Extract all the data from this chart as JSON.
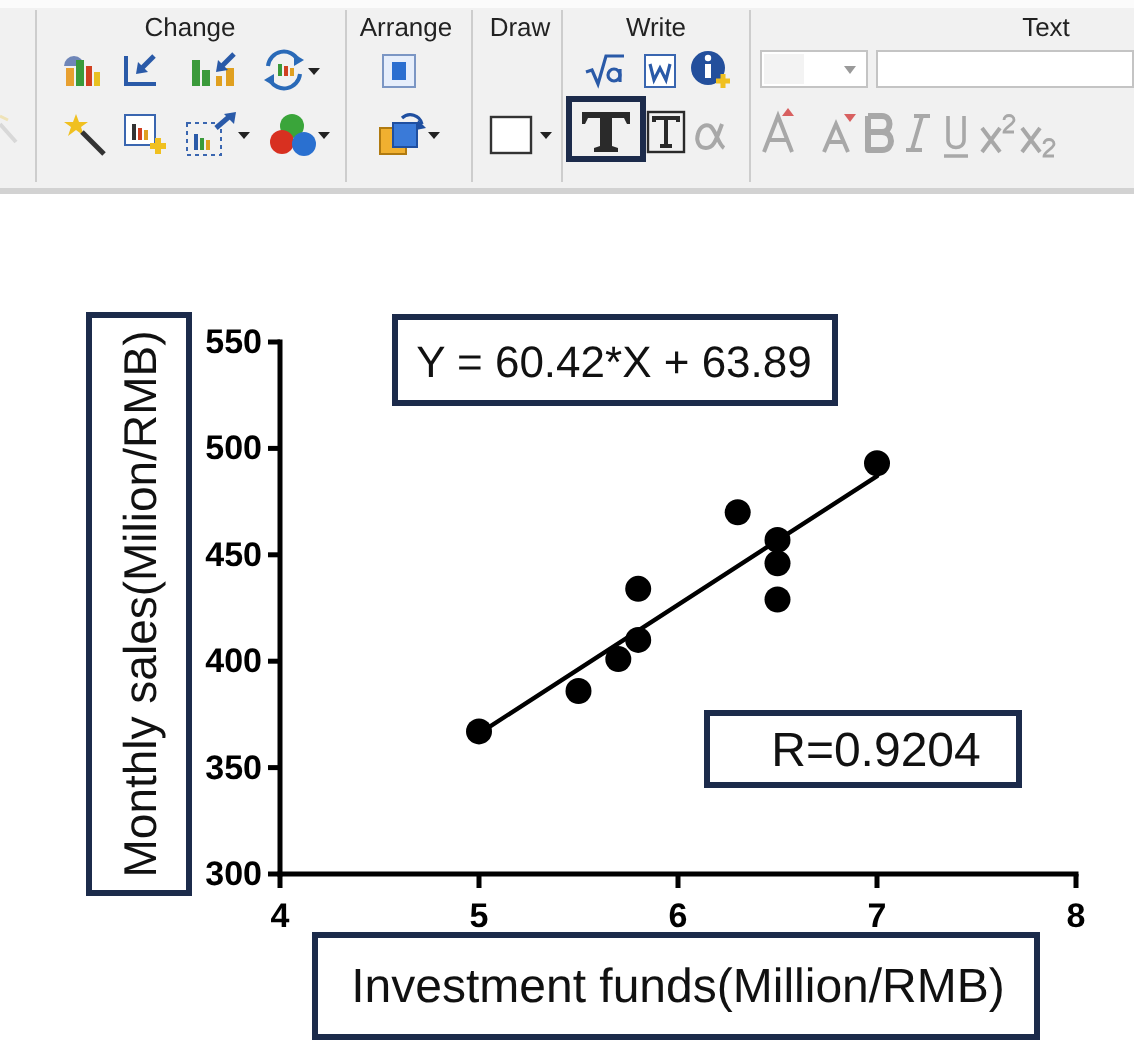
{
  "chart_data": {
    "type": "scatter",
    "xlabel": "Investment funds(Million/RMB)",
    "ylabel": "Monthly sales(Milion/RMB)",
    "marker": "circle",
    "series": [
      {
        "color": "#000000",
        "x": [
          5.0,
          5.5,
          5.7,
          5.8,
          5.8,
          6.3,
          6.5,
          6.5,
          6.5,
          7.0
        ],
        "values": [
          367,
          386,
          401,
          410,
          434,
          470,
          457,
          446,
          429,
          493
        ]
      },
      {
        "type": "line",
        "color": "#000000",
        "marker": "none",
        "x": [
          5,
          7
        ],
        "values": [
          366,
          487
        ]
      }
    ],
    "xlim": [
      4,
      8
    ],
    "xticks": [
      4,
      5,
      6,
      7,
      8
    ],
    "ylim": [
      300,
      550
    ],
    "yticks": [
      300,
      350,
      400,
      450,
      500,
      550
    ],
    "annotations": [
      "Change",
      "Arrange",
      "Draw",
      "Write",
      "Text",
      "Y = 60.42*X + 63.89",
      "R=0.9204"
    ]
  }
}
